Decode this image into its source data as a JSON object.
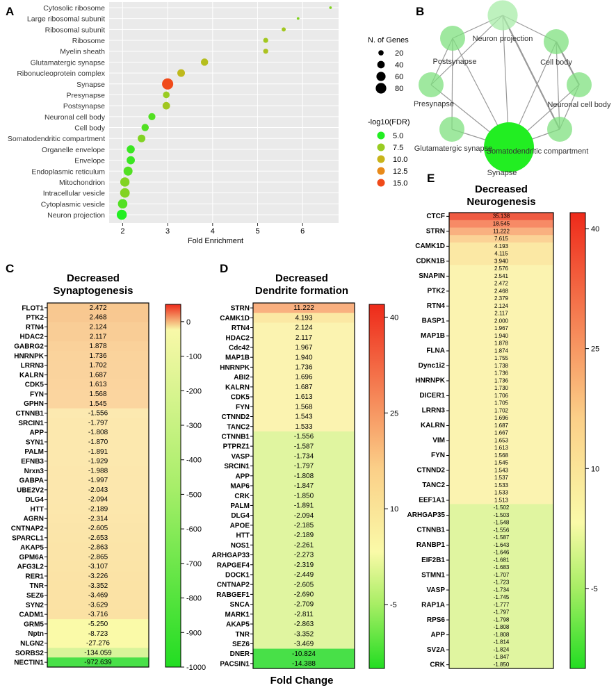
{
  "colors": {
    "panel_bg": "#eaeaea",
    "grid": "#ffffff",
    "green": "#22dd22",
    "red": "#ee2a1a",
    "edge": "#999999",
    "node": "#7fe37f"
  },
  "panel_letters": [
    "A",
    "B",
    "C",
    "D",
    "E"
  ],
  "chart_data": [
    {
      "type": "scatter",
      "panel": "A",
      "xlabel": "Fold Enrichment",
      "xlim": [
        1.7,
        6.8
      ],
      "xticks": [
        2,
        3,
        4,
        5,
        6
      ],
      "terms": [
        "Cytosolic ribosome",
        "Large ribosomal subunit",
        "Ribosomal subunit",
        "Ribosome",
        "Myelin sheath",
        "Glutamatergic synapse",
        "Ribonucleoprotein complex",
        "Synapse",
        "Presynapse",
        "Postsynapse",
        "Neuronal cell body",
        "Cell body",
        "Somatodendritic compartment",
        "Organelle envelope",
        "Envelope",
        "Endoplasmic reticulum",
        "Mitochondrion",
        "Intracellular vesicle",
        "Cytoplasmic vesicle",
        "Neuron projection"
      ],
      "fold_enrichment": [
        6.62,
        5.9,
        5.58,
        5.18,
        5.18,
        3.82,
        3.3,
        3.0,
        2.97,
        2.97,
        2.65,
        2.5,
        2.42,
        2.18,
        2.18,
        2.12,
        2.05,
        2.05,
        2.0,
        1.98
      ],
      "n_genes": [
        5,
        5,
        12,
        18,
        18,
        38,
        42,
        90,
        32,
        40,
        36,
        38,
        42,
        46,
        48,
        58,
        62,
        66,
        64,
        72
      ],
      "neg_log10_fdr": [
        7,
        7,
        8,
        8,
        8.5,
        9,
        9.5,
        15,
        7.5,
        8,
        6,
        6,
        7,
        5.5,
        5.5,
        6,
        7,
        7,
        6,
        5
      ],
      "size_legend_title": "N. of Genes",
      "size_legend": [
        "20",
        "40",
        "60",
        "80"
      ],
      "color_legend_title": "-log10(FDR)",
      "color_legend": [
        "5.0",
        "7.5",
        "10.0",
        "12.5",
        "15.0"
      ],
      "color_legend_colors": [
        "#22ee22",
        "#99cc22",
        "#c8b41a",
        "#e88a1a",
        "#f04a1a"
      ]
    },
    {
      "type": "network",
      "panel": "B",
      "nodes": [
        {
          "label": "Neuron projection",
          "size": 1.2
        },
        {
          "label": "Cell body",
          "size": 1.0
        },
        {
          "label": "Neuronal cell body",
          "size": 1.0
        },
        {
          "label": "Somatodendritic compartment",
          "size": 1.0
        },
        {
          "label": "Synapse",
          "size": 2.0
        },
        {
          "label": "Glutamatergic synapse",
          "size": 1.0
        },
        {
          "label": "Presynapse",
          "size": 1.0
        },
        {
          "label": "Postsynapse",
          "size": 1.0
        }
      ],
      "edges": [
        [
          0,
          1
        ],
        [
          0,
          3
        ],
        [
          0,
          4
        ],
        [
          0,
          6
        ],
        [
          0,
          7
        ],
        [
          1,
          2
        ],
        [
          1,
          3
        ],
        [
          2,
          3
        ],
        [
          3,
          4
        ],
        [
          4,
          5
        ],
        [
          4,
          6
        ],
        [
          4,
          7
        ],
        [
          5,
          7
        ],
        [
          6,
          7
        ],
        [
          1,
          4
        ],
        [
          2,
          4
        ]
      ]
    },
    {
      "type": "heatmap",
      "panel": "C",
      "title": [
        "Decreased",
        "Synaptogenesis"
      ],
      "genes": [
        "FLOT1",
        "PTK2",
        "RTN4",
        "HDAC2",
        "GABRG2",
        "HNRNPK",
        "LRRN3",
        "KALRN",
        "CDK5",
        "FYN",
        "GPHN",
        "CTNNB1",
        "SRCIN1",
        "APP",
        "SYN1",
        "PALM",
        "EFNB3",
        "Nrxn3",
        "GABPA",
        "UBE2V2",
        "DLG4",
        "HTT",
        "AGRN",
        "CNTNAP2",
        "SPARCL1",
        "AKAP5",
        "GPM6A",
        "AFG3L2",
        "RER1",
        "TNR",
        "SEZ6",
        "SYN2",
        "CADM1",
        "GRM5",
        "Nptn",
        "NLGN2",
        "SORBS2",
        "NECTIN1"
      ],
      "values": [
        "2.472",
        "2.468",
        "2.124",
        "2.117",
        "1.878",
        "1.736",
        "1.702",
        "1.687",
        "1.613",
        "1.568",
        "1.545",
        "-1.556",
        "-1.797",
        "-1.808",
        "-1.870",
        "-1.891",
        "-1.929",
        "-1.988",
        "-1.997",
        "-2.043",
        "-2.094",
        "-2.189",
        "-2.314",
        "-2.605",
        "-2.653",
        "-2.863",
        "-2.865",
        "-3.107",
        "-3.226",
        "-3.352",
        "-3.469",
        "-3.629",
        "-3.716",
        "-5.250",
        "-8.723",
        "-27.276",
        "-134.059",
        "-972.639"
      ],
      "scale_ticks": [
        "0",
        "-100",
        "-200",
        "-300",
        "-400",
        "-500",
        "-600",
        "-700",
        "-800",
        "-900",
        "-1000"
      ],
      "scale_range": [
        -1000,
        50
      ]
    },
    {
      "type": "heatmap",
      "panel": "D",
      "title": [
        "Decreased",
        "Dendrite formation"
      ],
      "genes": [
        "STRN",
        "CAMK1D",
        "RTN4",
        "HDAC2",
        "Cdc42",
        "MAP1B",
        "HNRNPK",
        "ABI2",
        "KALRN",
        "CDK5",
        "FYN",
        "CTNND2",
        "TANC2",
        "CTNNB1",
        "PTPRZ1",
        "VASP",
        "SRCIN1",
        "APP",
        "MAP6",
        "CRK",
        "PALM",
        "DLG4",
        "APOE",
        "HTT",
        "NOS1",
        "ARHGAP33",
        "RAPGEF4",
        "DOCK1",
        "CNTNAP2",
        "RABGEF1",
        "SNCA",
        "MARK1",
        "AKAP5",
        "TNR",
        "SEZ6",
        "DNER",
        "PACSIN1"
      ],
      "values": [
        "11.222",
        "4.193",
        "2.124",
        "2.117",
        "1.967",
        "1.940",
        "1.736",
        "1.696",
        "1.687",
        "1.613",
        "1.568",
        "1.543",
        "1.533",
        "-1.556",
        "-1.587",
        "-1.734",
        "-1.797",
        "-1.808",
        "-1.847",
        "-1.850",
        "-1.891",
        "-2.094",
        "-2.185",
        "-2.189",
        "-2.261",
        "-2.273",
        "-2.319",
        "-2.449",
        "-2.605",
        "-2.690",
        "-2.709",
        "-2.811",
        "-2.863",
        "-3.352",
        "-3.469",
        "-10.824",
        "-14.388"
      ],
      "xlabel": "Fold Change",
      "scale_ticks": [
        "40",
        "25",
        "10",
        "-5"
      ],
      "scale_range": [
        -15,
        42
      ]
    },
    {
      "type": "heatmap",
      "panel": "E",
      "title": [
        "Decreased",
        "Neurogenesis"
      ],
      "genes": [
        "CTCF",
        "",
        "STRN",
        "",
        "CAMK1D",
        "",
        "CDKN1B",
        "",
        "SNAPIN",
        "",
        "PTK2",
        "",
        "RTN4",
        "",
        "BASP1",
        "",
        "MAP1B",
        "",
        "FLNA",
        "",
        "Dync1i2",
        "",
        "HNRNPK",
        "",
        "DICER1",
        "",
        "LRRN3",
        "",
        "KALRN",
        "",
        "VIM",
        "",
        "FYN",
        "",
        "CTNND2",
        "",
        "TANC2",
        "",
        "EEF1A1",
        "",
        "ARHGAP35",
        "",
        "CTNNB1",
        "",
        "RANBP1",
        "",
        "EIF2B1",
        "",
        "STMN1",
        "",
        "VASP",
        "",
        "RAP1A",
        "",
        "RPS6",
        "",
        "APP",
        "",
        "SV2A",
        "",
        "CRK"
      ],
      "values": [
        "35.138",
        "18.545",
        "11.222",
        "7.615",
        "4.193",
        "4.115",
        "3.940",
        "2.576",
        "2.541",
        "2.472",
        "2.468",
        "2.379",
        "2.124",
        "2.117",
        "2.000",
        "1.967",
        "1.940",
        "1.878",
        "1.874",
        "1.755",
        "1.738",
        "1.736",
        "1.736",
        "1.730",
        "1.706",
        "1.705",
        "1.702",
        "1.696",
        "1.687",
        "1.667",
        "1.653",
        "1.613",
        "1.568",
        "1.545",
        "1.543",
        "1.537",
        "1.533",
        "1.533",
        "1.513",
        "-1.502",
        "-1.503",
        "-1.548",
        "-1.556",
        "-1.587",
        "-1.643",
        "-1.646",
        "-1.681",
        "-1.683",
        "-1.707",
        "-1.723",
        "-1.734",
        "-1.745",
        "-1.777",
        "-1.797",
        "-1.798",
        "-1.808",
        "-1.808",
        "-1.814",
        "-1.824",
        "-1.847",
        "-1.850"
      ],
      "scale_ticks": [
        "40",
        "25",
        "10",
        "-5"
      ],
      "scale_range": [
        -15,
        42
      ]
    }
  ]
}
